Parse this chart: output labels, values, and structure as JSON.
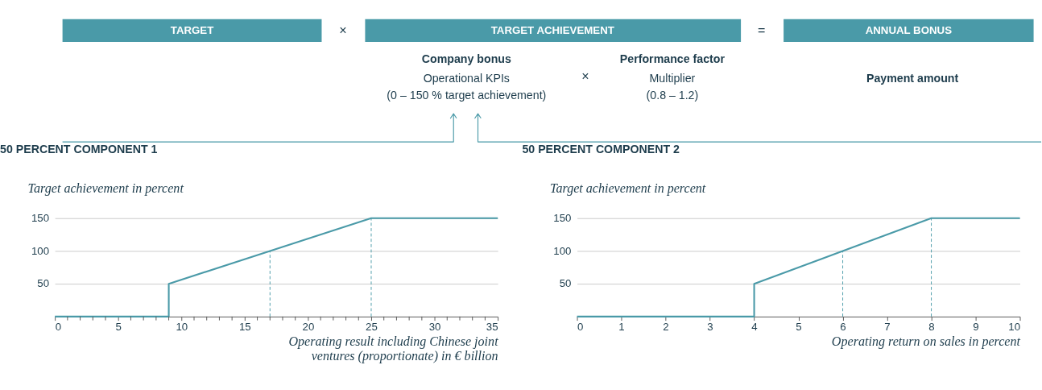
{
  "chart_data": [
    {
      "type": "other",
      "annotations": [
        "TARGET",
        "×",
        "TARGET ACHIEVEMENT",
        "=",
        "ANNUAL BONUS",
        "Company bonus",
        "Operational KPIs",
        "(0 – 150 % target achievement)",
        "×",
        "Performance factor",
        "Multiplier",
        "(0.8 – 1.2)",
        "Payment amount"
      ]
    },
    {
      "type": "line",
      "title": "50 PERCENT COMPONENT 1",
      "ylabel": "Target achievement in percent",
      "xlabel": "Operating result including Chinese joint\nventures (proportionate) in € billion",
      "series": [
        {
          "color": "#4a9aa8",
          "x": [
            0,
            9,
            9,
            17,
            25,
            35
          ],
          "values": [
            0,
            0,
            50,
            100,
            150,
            150
          ]
        }
      ],
      "xlim": [
        0,
        35
      ],
      "ylim": [
        0,
        150
      ],
      "yticks": [
        50,
        100,
        150
      ],
      "xticks": [
        0,
        {
          "value": 1,
          "label": null
        },
        {
          "value": 2,
          "label": null
        },
        {
          "value": 3,
          "label": null
        },
        {
          "value": 4,
          "label": null
        },
        5,
        {
          "value": 6,
          "label": null
        },
        {
          "value": 7,
          "label": null
        },
        {
          "value": 8,
          "label": null
        },
        {
          "value": 9,
          "label": null
        },
        10,
        {
          "value": 11,
          "label": null
        },
        {
          "value": 12,
          "label": null
        },
        {
          "value": 13,
          "label": null
        },
        {
          "value": 14,
          "label": null
        },
        15,
        {
          "value": 16,
          "label": null
        },
        {
          "value": 17,
          "label": null
        },
        {
          "value": 18,
          "label": null
        },
        {
          "value": 19,
          "label": null
        },
        20,
        {
          "value": 21,
          "label": null
        },
        {
          "value": 22,
          "label": null
        },
        {
          "value": 23,
          "label": null
        },
        {
          "value": 24,
          "label": null
        },
        25,
        {
          "value": 26,
          "label": null
        },
        {
          "value": 27,
          "label": null
        },
        {
          "value": 28,
          "label": null
        },
        {
          "value": 29,
          "label": null
        },
        30,
        {
          "value": 31,
          "label": null
        },
        {
          "value": 32,
          "label": null
        },
        {
          "value": 33,
          "label": null
        },
        {
          "value": 34,
          "label": null
        },
        35
      ],
      "grid": "y",
      "ref_lines": [
        {
          "axis": "x",
          "value": 17,
          "color": "#4a9aa8",
          "line_style": "dashed"
        },
        {
          "axis": "x",
          "value": 25,
          "color": "#4a9aa8",
          "line_style": "dashed"
        }
      ]
    },
    {
      "type": "line",
      "title": "50 PERCENT COMPONENT 2",
      "ylabel": "Target achievement in percent",
      "xlabel": "Operating return on sales in percent",
      "series": [
        {
          "color": "#4a9aa8",
          "x": [
            0,
            4,
            4,
            6,
            8,
            10
          ],
          "values": [
            0,
            0,
            50,
            100,
            150,
            150
          ]
        }
      ],
      "xlim": [
        0,
        10
      ],
      "ylim": [
        0,
        150
      ],
      "yticks": [
        50,
        100,
        150
      ],
      "xticks": [
        0,
        1,
        2,
        3,
        4,
        5,
        6,
        7,
        8,
        9,
        10
      ],
      "grid": "y",
      "ref_lines": [
        {
          "axis": "x",
          "value": 6,
          "color": "#4a9aa8",
          "line_style": "dashed"
        },
        {
          "axis": "x",
          "value": 8,
          "color": "#4a9aa8",
          "line_style": "dashed"
        }
      ]
    }
  ]
}
